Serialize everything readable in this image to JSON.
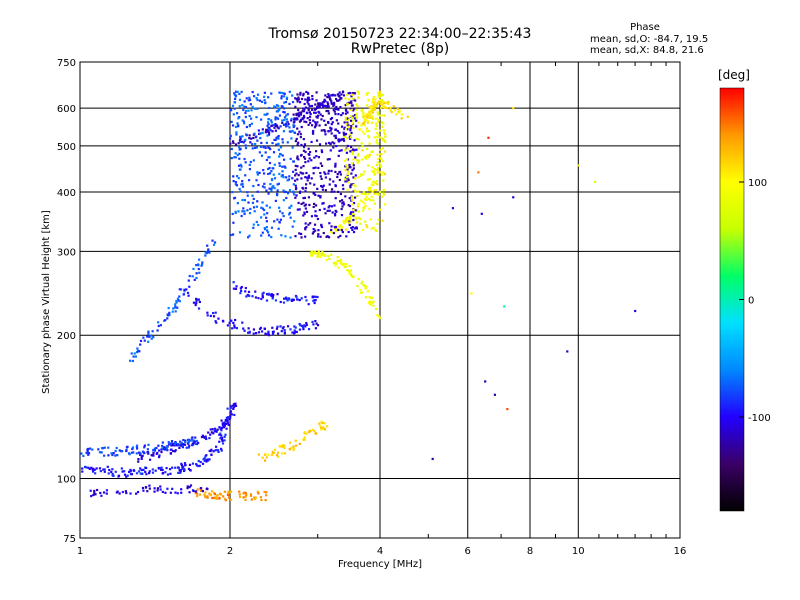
{
  "title": {
    "line1": "Tromsø 20150723 22:34:00–22:35:43",
    "line2": "RwPretec (8p)"
  },
  "phase_info": {
    "title": "Phase",
    "o_line": "mean, sd,O: -84.7, 19.5",
    "x_line": "mean, sd,X:  84.8, 21.6"
  },
  "colorbar": {
    "unit": "[deg]",
    "range": [
      -180,
      180
    ],
    "ticks": [
      100,
      0,
      -100
    ],
    "tick_labels": [
      "100",
      "0",
      "-100"
    ],
    "colormap": [
      "#000000",
      "#3a0066",
      "#2200ff",
      "#0088ff",
      "#00e0ff",
      "#00ff66",
      "#c8ff00",
      "#ffff00",
      "#ff9900",
      "#ff0000"
    ]
  },
  "chart_data": {
    "type": "scatter",
    "xlabel": "Frequency [MHz]",
    "ylabel": "Stationary phase Virtual Height [km]",
    "xscale": "log",
    "yscale": "log",
    "xlim": [
      1,
      16
    ],
    "ylim": [
      75,
      750
    ],
    "xticks": [
      1,
      2,
      4,
      6,
      8,
      10,
      16
    ],
    "xtick_labels": [
      "1",
      "2",
      "4",
      "6",
      "8",
      "10",
      "16"
    ],
    "yticks": [
      75,
      100,
      200,
      300,
      400,
      500,
      600,
      750
    ],
    "ytick_labels": [
      "75",
      "100",
      "200",
      "300",
      "400",
      "500",
      "600",
      "750"
    ],
    "grid": true,
    "legend": "colorbar-right",
    "traces": [
      {
        "name": "o-low-trace",
        "phase": -95,
        "x": [
          1.0,
          1.1,
          1.2,
          1.3,
          1.4,
          1.5,
          1.6,
          1.7,
          1.8,
          1.9,
          1.95,
          2.0
        ],
        "y": [
          104,
          104,
          103,
          103,
          104,
          104,
          105,
          107,
          110,
          115,
          125,
          140
        ]
      },
      {
        "name": "o-mid-trace",
        "phase": -105,
        "x": [
          1.3,
          1.4,
          1.5,
          1.6,
          1.7,
          1.8,
          1.9,
          2.0,
          2.05
        ],
        "y": [
          110,
          112,
          115,
          118,
          120,
          123,
          126,
          135,
          145
        ]
      },
      {
        "name": "o-low2-trace",
        "phase": -80,
        "x": [
          1.0,
          1.1,
          1.2,
          1.3,
          1.4,
          1.5,
          1.6,
          1.7
        ],
        "y": [
          113,
          114,
          114,
          115,
          116,
          117,
          118,
          119
        ]
      },
      {
        "name": "o-F-ramp",
        "phase": -75,
        "x": [
          1.25,
          1.35,
          1.45,
          1.55,
          1.65,
          1.75,
          1.85
        ],
        "y": [
          175,
          195,
          210,
          230,
          255,
          285,
          320
        ]
      },
      {
        "name": "o-F1-trace",
        "phase": -100,
        "x": [
          1.6,
          1.8,
          2.0,
          2.2,
          2.4,
          2.6,
          2.8,
          3.0
        ],
        "y": [
          250,
          222,
          212,
          206,
          204,
          205,
          208,
          212
        ]
      },
      {
        "name": "o-F-arc",
        "phase": -95,
        "x": [
          2.0,
          2.2,
          2.4,
          2.6,
          2.8,
          3.0
        ],
        "y": [
          255,
          245,
          240,
          238,
          237,
          236
        ]
      },
      {
        "name": "o-F2-spread",
        "phase": -115,
        "x": [
          2.0,
          2.2,
          2.4,
          2.6,
          2.8,
          3.0,
          3.2,
          3.4
        ],
        "y": [
          500,
          520,
          540,
          560,
          580,
          600,
          620,
          640
        ]
      },
      {
        "name": "x-F-trace",
        "phase": 90,
        "x": [
          2.9,
          3.0,
          3.2,
          3.4,
          3.6,
          3.8,
          4.0
        ],
        "y": [
          300,
          296,
          290,
          280,
          260,
          240,
          220
        ]
      },
      {
        "name": "x-F2-trace",
        "phase": 95,
        "x": [
          3.2,
          3.4,
          3.6,
          3.8,
          3.9,
          4.0
        ],
        "y": [
          330,
          345,
          365,
          390,
          420,
          470
        ]
      },
      {
        "name": "x-top-trace",
        "phase": 110,
        "x": [
          3.7,
          3.8,
          3.9,
          4.0,
          4.2,
          4.5
        ],
        "y": [
          560,
          580,
          600,
          620,
          600,
          580
        ]
      },
      {
        "name": "es-low-trace",
        "phase": 140,
        "x": [
          1.7,
          1.8,
          1.9,
          2.0,
          2.2,
          2.4
        ],
        "y": [
          94,
          93,
          92,
          92,
          92,
          92
        ]
      },
      {
        "name": "x-low-trace",
        "phase": 120,
        "x": [
          2.3,
          2.5,
          2.7,
          2.9,
          3.1
        ],
        "y": [
          110,
          114,
          118,
          125,
          130
        ]
      },
      {
        "name": "o-E-spread",
        "phase": -105,
        "x": [
          1.05,
          1.2,
          1.4,
          1.6,
          1.8
        ],
        "y": [
          93,
          94,
          95,
          95,
          96
        ]
      }
    ],
    "scatter_points": [
      {
        "x": 6.3,
        "y": 440,
        "phase": 150
      },
      {
        "x": 6.6,
        "y": 520,
        "phase": 170
      },
      {
        "x": 5.6,
        "y": 370,
        "phase": -110
      },
      {
        "x": 6.4,
        "y": 360,
        "phase": -110
      },
      {
        "x": 7.4,
        "y": 390,
        "phase": -110
      },
      {
        "x": 6.1,
        "y": 245,
        "phase": 100
      },
      {
        "x": 7.1,
        "y": 230,
        "phase": 0
      },
      {
        "x": 5.1,
        "y": 110,
        "phase": -120
      },
      {
        "x": 6.5,
        "y": 160,
        "phase": -120
      },
      {
        "x": 6.8,
        "y": 150,
        "phase": -120
      },
      {
        "x": 7.2,
        "y": 140,
        "phase": 160
      },
      {
        "x": 9.5,
        "y": 185,
        "phase": -120
      },
      {
        "x": 10.0,
        "y": 455,
        "phase": 110
      },
      {
        "x": 10.8,
        "y": 420,
        "phase": 70
      },
      {
        "x": 13.0,
        "y": 225,
        "phase": -110
      },
      {
        "x": 7.4,
        "y": 600,
        "phase": 110
      }
    ]
  }
}
